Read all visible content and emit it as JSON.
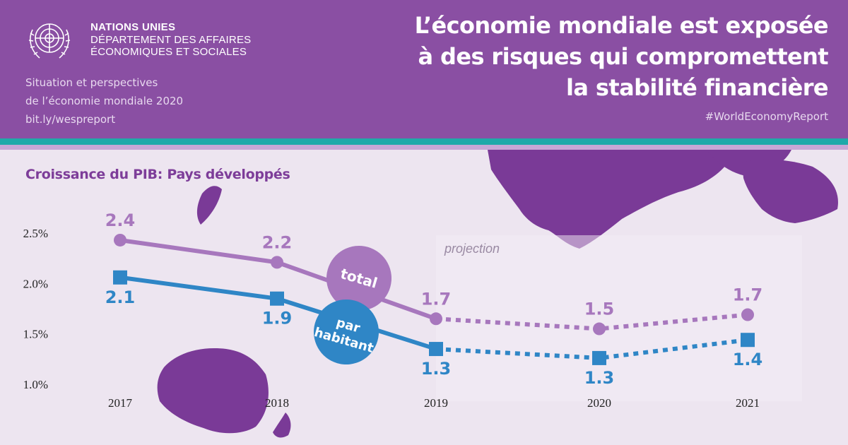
{
  "header": {
    "org_line1": "NATIONS UNIES",
    "org_line2": "DÉPARTEMENT DES AFFAIRES",
    "org_line3": "ÉCONOMIQUES ET SOCIALES",
    "report_line1": "Situation et perspectives",
    "report_line2": "de l’économie mondiale 2020",
    "report_link": "bit.ly/wespreport",
    "headline_line1": "L’économie mondiale est exposée",
    "headline_line2": "à des risques qui compromettent",
    "headline_line3": "la stabilité financière",
    "hashtag": "#WorldEconomyReport"
  },
  "colors": {
    "header_bg": "#8a4fa3",
    "accent_teal": "#1fa9a9",
    "total_series": "#a777bd",
    "per_capita_series": "#2f86c6",
    "title_purple": "#7d3d99"
  },
  "chart_data": {
    "type": "line",
    "title": "Croissance du PIB: Pays développés",
    "x": [
      "2017",
      "2018",
      "2019",
      "2020",
      "2021"
    ],
    "yticks": [
      "1.0%",
      "1.5%",
      "2.0%",
      "2.5%"
    ],
    "ylim": [
      1.0,
      2.5
    ],
    "projection_label": "projection",
    "projection_start": "2019",
    "series": [
      {
        "name": "total",
        "values": [
          2.43,
          2.21,
          1.65,
          1.55,
          1.69
        ],
        "labels": [
          "2.4",
          "2.2",
          "1.7",
          "1.5",
          "1.7"
        ],
        "marker": "circle"
      },
      {
        "name": "par habitant",
        "values": [
          2.06,
          1.85,
          1.35,
          1.26,
          1.44
        ],
        "labels": [
          "2.1",
          "1.9",
          "1.3",
          "1.3",
          "1.4"
        ],
        "marker": "square"
      }
    ],
    "grid": false,
    "legend": "inline-badges"
  }
}
